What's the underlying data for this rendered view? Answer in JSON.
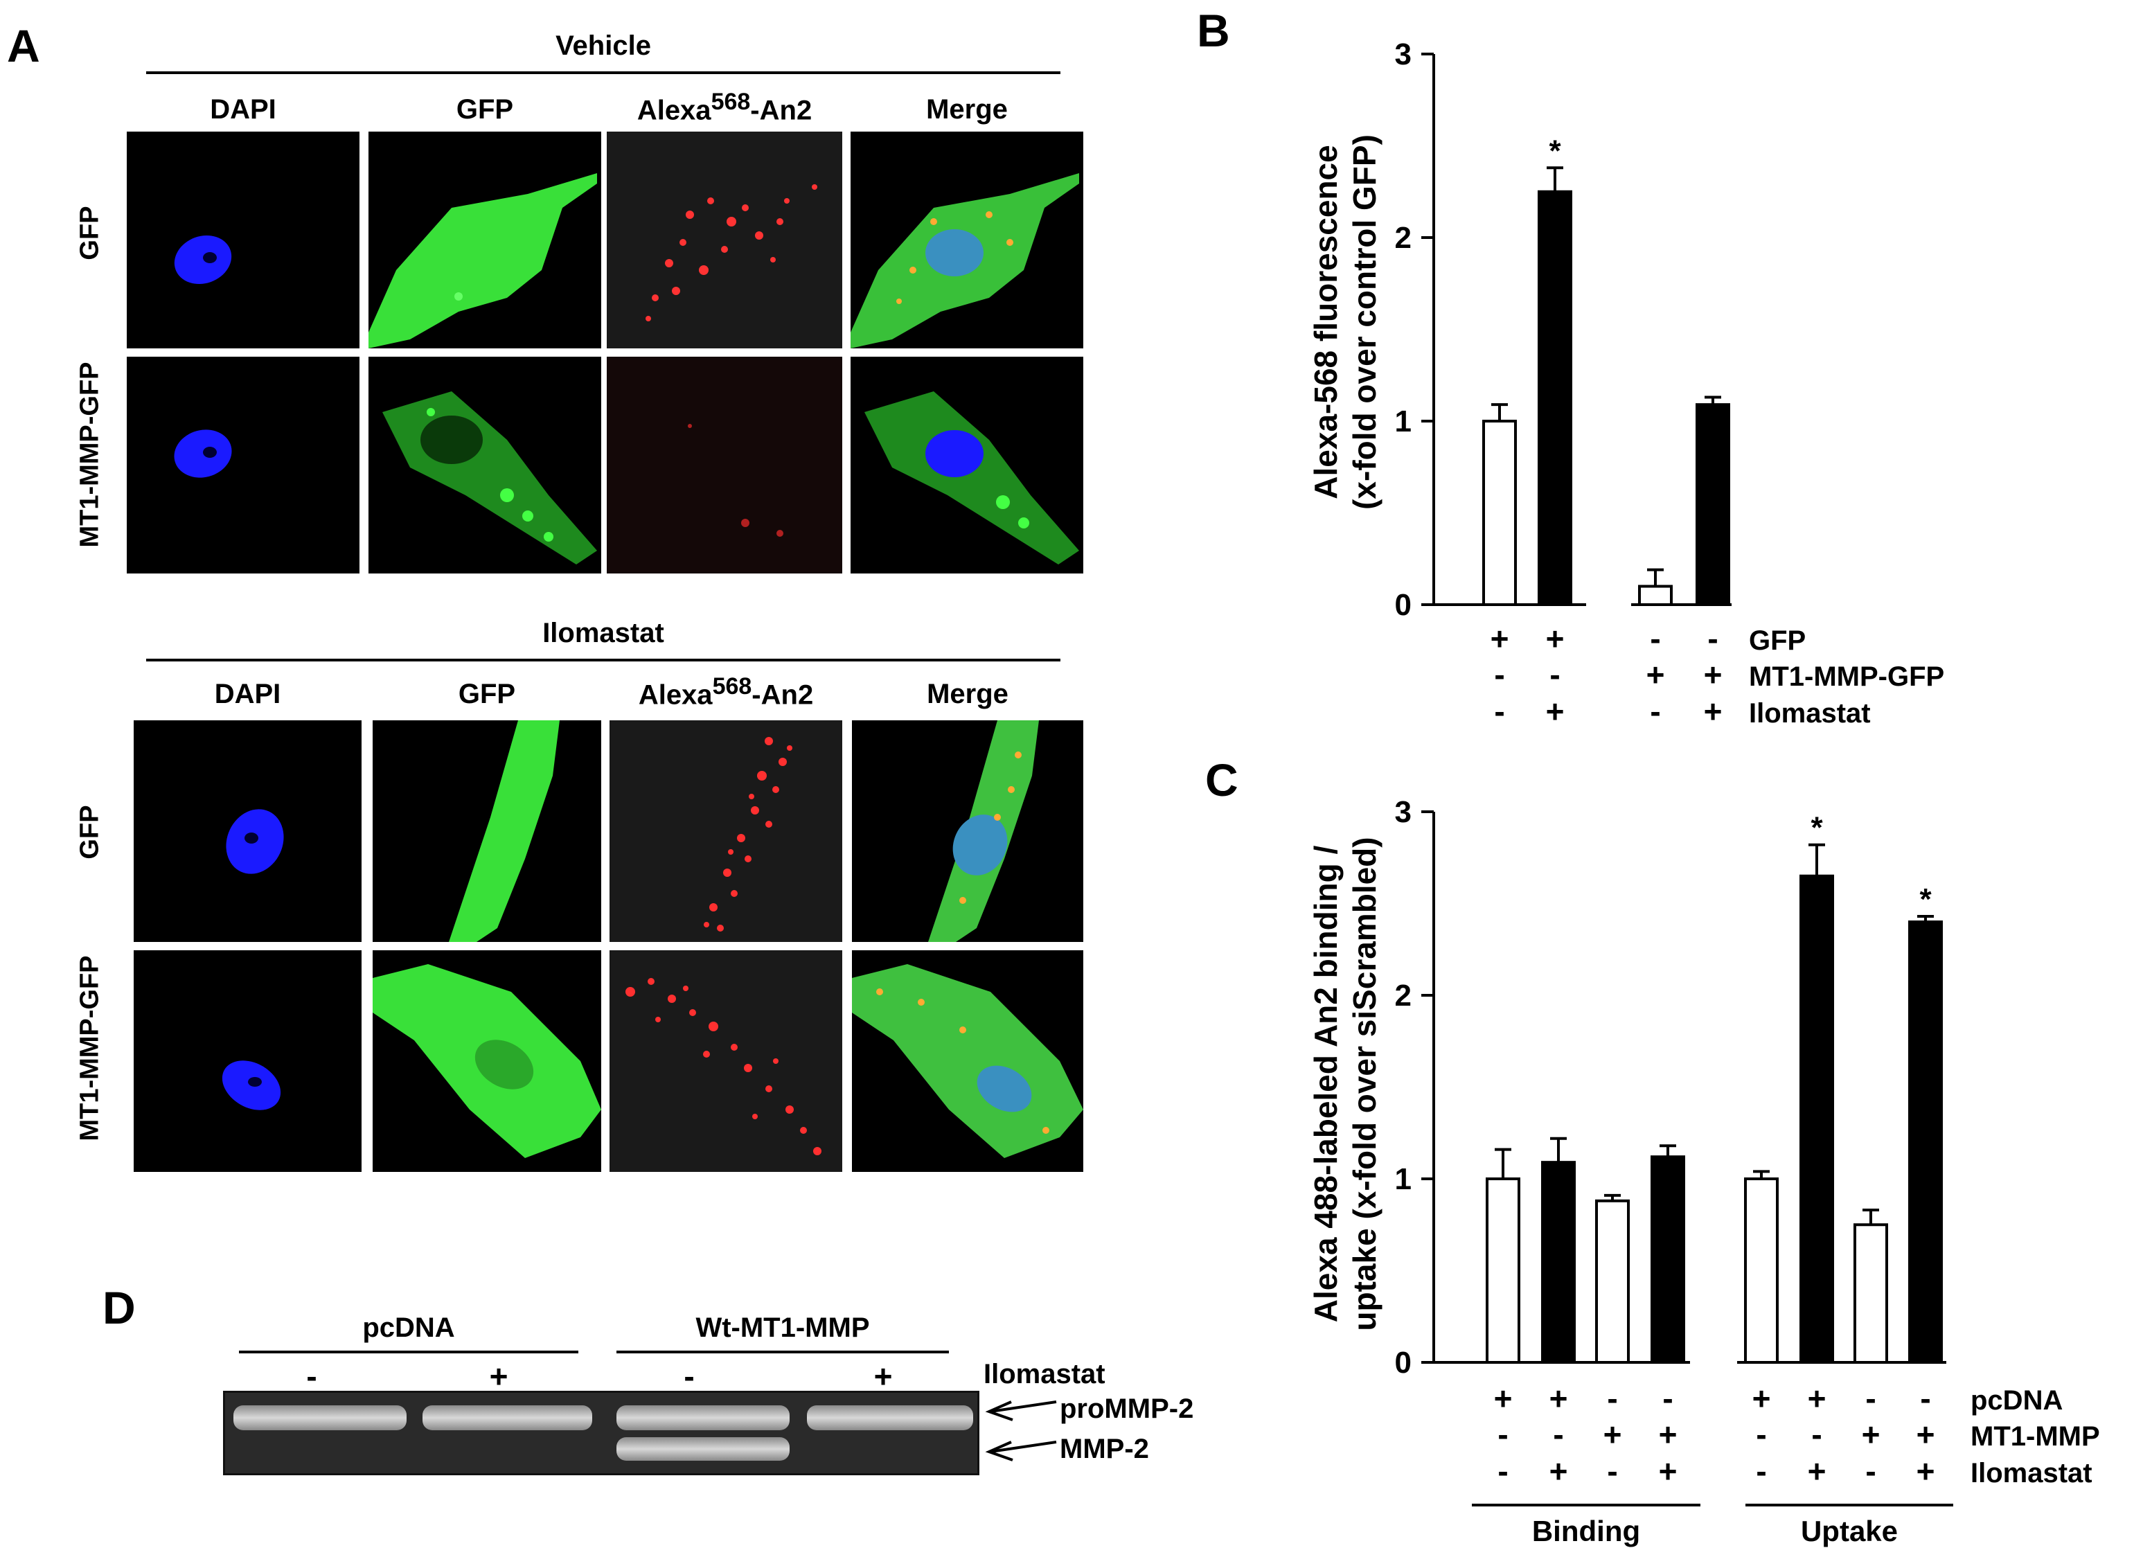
{
  "panels": {
    "a": "A",
    "b": "B",
    "c": "C",
    "d": "D"
  },
  "panelA": {
    "groups": [
      {
        "title": "Vehicle",
        "rows": [
          "GFP",
          "MT1-MMP-GFP"
        ]
      },
      {
        "title": "Ilomastat",
        "rows": [
          "GFP",
          "MT1-MMP-GFP"
        ]
      }
    ],
    "columns": [
      "DAPI",
      "GFP",
      "Alexa",
      "Merge"
    ],
    "alexa_sup": "568",
    "alexa_suffix": "-An2"
  },
  "chart_data": [
    {
      "type": "bar",
      "panel": "B",
      "ylabel_line1": "Alexa-568 fluorescence",
      "ylabel_line2": "(x-fold over control GFP)",
      "ylim": [
        0,
        3
      ],
      "yticks": [
        "0",
        "1",
        "2",
        "3"
      ],
      "bars": [
        {
          "fill": "white",
          "value": 1.0,
          "error": 0.09,
          "star": ""
        },
        {
          "fill": "black",
          "value": 2.25,
          "error": 0.13,
          "star": "*"
        },
        {
          "fill": "white",
          "value": 0.1,
          "error": 0.09,
          "star": ""
        },
        {
          "fill": "black",
          "value": 1.09,
          "error": 0.04,
          "star": ""
        }
      ],
      "conditions": [
        {
          "label": "GFP",
          "signs": [
            "+",
            "+",
            "-",
            "-"
          ]
        },
        {
          "label": "MT1-MMP-GFP",
          "signs": [
            "-",
            "-",
            "+",
            "+"
          ]
        },
        {
          "label": "Ilomastat",
          "signs": [
            "-",
            "+",
            "-",
            "+"
          ]
        }
      ]
    },
    {
      "type": "bar",
      "panel": "C",
      "ylabel_line1": "Alexa 488-labeled An2 binding /",
      "ylabel_line2": "uptake  (x-fold over siScrambled)",
      "ylim": [
        0,
        3
      ],
      "yticks": [
        "0",
        "1",
        "2",
        "3"
      ],
      "bars": [
        {
          "fill": "white",
          "value": 1.0,
          "error": 0.16,
          "star": ""
        },
        {
          "fill": "black",
          "value": 1.09,
          "error": 0.13,
          "star": ""
        },
        {
          "fill": "white",
          "value": 0.88,
          "error": 0.03,
          "star": ""
        },
        {
          "fill": "black",
          "value": 1.12,
          "error": 0.06,
          "star": ""
        },
        {
          "fill": "white",
          "value": 1.0,
          "error": 0.04,
          "star": ""
        },
        {
          "fill": "black",
          "value": 2.65,
          "error": 0.17,
          "star": "*"
        },
        {
          "fill": "white",
          "value": 0.75,
          "error": 0.08,
          "star": ""
        },
        {
          "fill": "black",
          "value": 2.4,
          "error": 0.03,
          "star": "*"
        }
      ],
      "conditions": [
        {
          "label": "pcDNA",
          "signs": [
            "+",
            "+",
            "-",
            "-",
            "+",
            "+",
            "-",
            "-"
          ]
        },
        {
          "label": "MT1-MMP",
          "signs": [
            "-",
            "-",
            "+",
            "+",
            "-",
            "-",
            "+",
            "+"
          ]
        },
        {
          "label": "Ilomastat",
          "signs": [
            "-",
            "+",
            "-",
            "+",
            "-",
            "+",
            "-",
            "+"
          ]
        }
      ],
      "groups": [
        "Binding",
        "Uptake"
      ]
    }
  ],
  "panelD": {
    "groups": [
      "pcDNA",
      "Wt-MT1-MMP"
    ],
    "lane_signs": [
      "-",
      "+",
      "-",
      "+"
    ],
    "treatment_label": "Ilomastat",
    "bands": [
      "proMMP-2",
      "MMP-2"
    ]
  }
}
